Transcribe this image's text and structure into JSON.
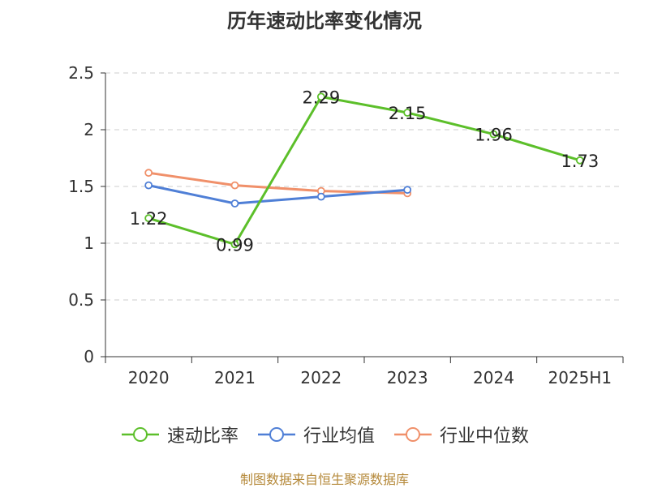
{
  "chart_data": {
    "type": "line",
    "title": "历年速动比率变化情况",
    "categories": [
      "2020",
      "2021",
      "2022",
      "2023",
      "2024",
      "2025H1"
    ],
    "ylim": [
      0,
      2.5
    ],
    "yticks": [
      "0",
      "0.5",
      "1",
      "1.5",
      "2",
      "2.5"
    ],
    "grid": true,
    "legend_position": "bottom",
    "series": [
      {
        "name": "速动比率",
        "color": "#5cbf2a",
        "values": [
          1.22,
          0.99,
          2.29,
          2.15,
          1.96,
          1.73
        ],
        "labels": [
          "1.22",
          "0.99",
          "2.29",
          "2.15",
          "1.96",
          "1.73"
        ]
      },
      {
        "name": "行业均值",
        "color": "#4f7fd6",
        "values": [
          1.51,
          1.35,
          1.41,
          1.47,
          null,
          null
        ]
      },
      {
        "name": "行业中位数",
        "color": "#f0906a",
        "values": [
          1.62,
          1.51,
          1.46,
          1.44,
          null,
          null
        ]
      }
    ]
  },
  "source_note": "制图数据来自恒生聚源数据库"
}
